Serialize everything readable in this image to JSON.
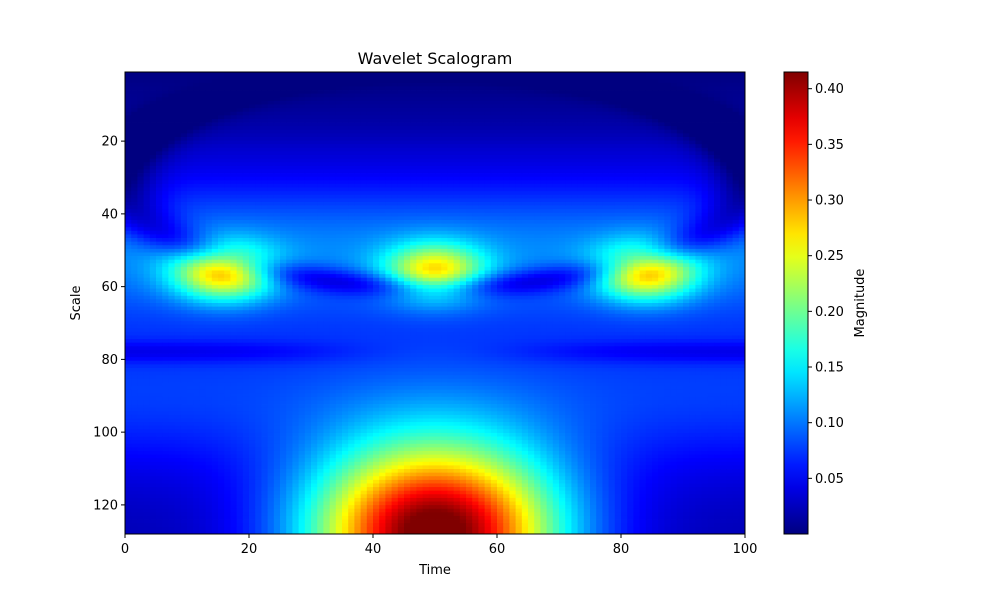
{
  "chart_data": {
    "type": "heatmap",
    "title": "Wavelet Scalogram",
    "xlabel": "Time",
    "ylabel": "Scale",
    "xlim": [
      0,
      100
    ],
    "ylim": [
      128,
      1
    ],
    "x_ticks": [
      0,
      20,
      40,
      60,
      80,
      100
    ],
    "y_ticks": [
      20,
      40,
      60,
      80,
      100,
      120
    ],
    "colormap": "jet",
    "colorbar": {
      "label": "Magnitude",
      "range": [
        0.0,
        0.415
      ],
      "ticks": [
        0.05,
        0.1,
        0.15,
        0.2,
        0.25,
        0.3,
        0.35,
        0.4
      ],
      "tick_labels": [
        "0.05",
        "0.10",
        "0.15",
        "0.20",
        "0.25",
        "0.30",
        "0.35",
        "0.40"
      ]
    },
    "grid": false,
    "features": [
      {
        "description": "blob",
        "time": 16,
        "scale": 56,
        "magnitude": 0.2
      },
      {
        "description": "blob",
        "time": 50,
        "scale": 56,
        "magnitude": 0.18
      },
      {
        "description": "blob",
        "time": 84,
        "scale": 56,
        "magnitude": 0.2
      },
      {
        "description": "dome",
        "time": 50,
        "scale": 128,
        "magnitude": 0.415
      }
    ]
  }
}
